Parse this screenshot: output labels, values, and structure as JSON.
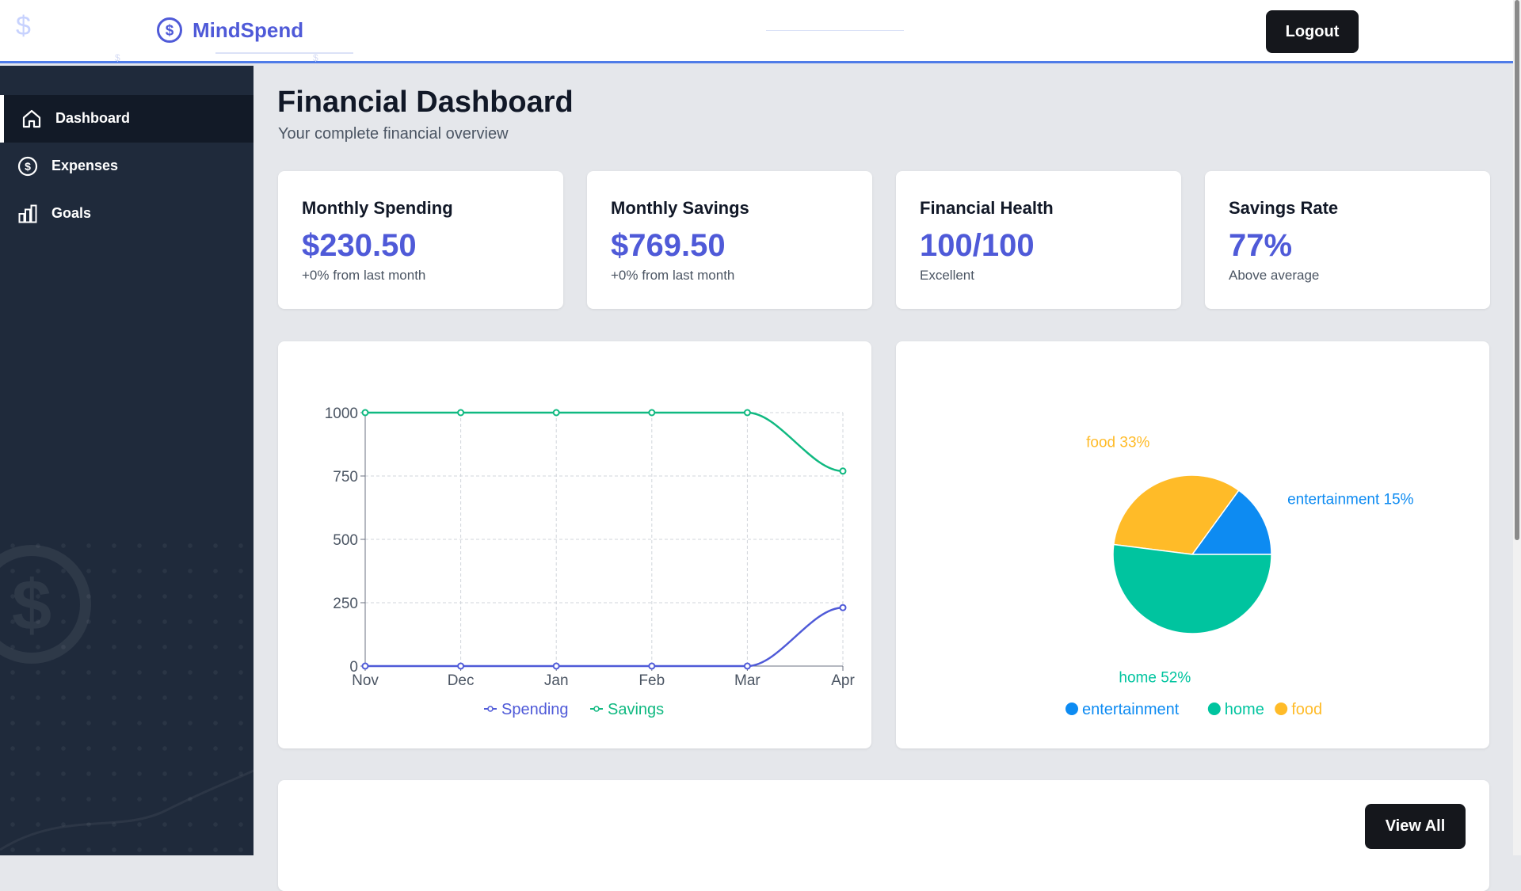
{
  "header": {
    "brand": "MindSpend",
    "logout_label": "Logout"
  },
  "sidebar": {
    "items": [
      {
        "label": "Dashboard",
        "icon": "home-icon",
        "active": true
      },
      {
        "label": "Expenses",
        "icon": "dollar-circle-icon",
        "active": false
      },
      {
        "label": "Goals",
        "icon": "bar-chart-icon",
        "active": false
      }
    ]
  },
  "main": {
    "title": "Financial Dashboard",
    "subtitle": "Your complete financial overview",
    "cards": [
      {
        "title": "Monthly Spending",
        "value": "$230.50",
        "note": "+0% from last month"
      },
      {
        "title": "Monthly Savings",
        "value": "$769.50",
        "note": "+0% from last month"
      },
      {
        "title": "Financial Health",
        "value": "100/100",
        "note": "Excellent"
      },
      {
        "title": "Savings Rate",
        "value": "77%",
        "note": "Above average"
      }
    ],
    "view_all_label": "View All"
  },
  "colors": {
    "accent": "#4f5ad8",
    "spending": "#4f5ad8",
    "savings": "#10b981",
    "entertainment": "#0d8bf2",
    "home": "#00c49f",
    "food": "#ffbb28"
  },
  "chart_data": [
    {
      "type": "line",
      "categories": [
        "Nov",
        "Dec",
        "Jan",
        "Feb",
        "Mar",
        "Apr"
      ],
      "series": [
        {
          "name": "Spending",
          "values": [
            0,
            0,
            0,
            0,
            0,
            230.5
          ]
        },
        {
          "name": "Savings",
          "values": [
            1000,
            1000,
            1000,
            1000,
            1000,
            769.5
          ]
        }
      ],
      "yticks": [
        0,
        250,
        500,
        750,
        1000
      ],
      "ylim": [
        0,
        1000
      ],
      "grid": true,
      "legend": "bottom"
    },
    {
      "type": "pie",
      "slices": [
        {
          "name": "entertainment",
          "value": 15,
          "label": "entertainment 15%"
        },
        {
          "name": "food",
          "value": 33,
          "label": "food 33%"
        },
        {
          "name": "home",
          "value": 52,
          "label": "home 52%"
        }
      ],
      "legend_order": [
        "entertainment",
        "home",
        "food"
      ],
      "legend": "bottom"
    }
  ]
}
